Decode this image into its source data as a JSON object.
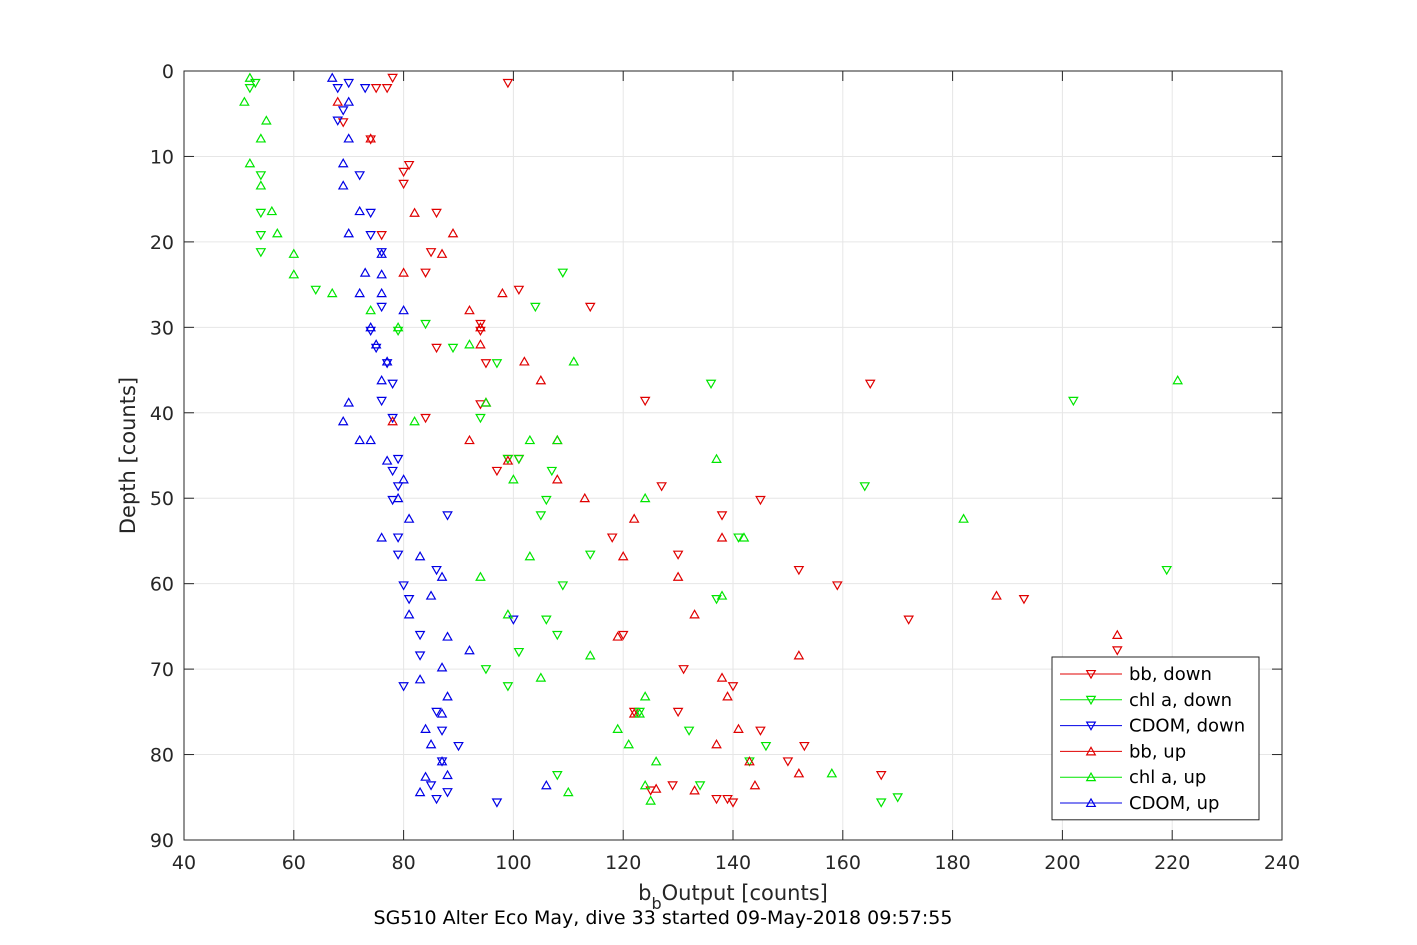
{
  "caption": "SG510 Alter Eco May, dive 33 started 09-May-2018 09:57:55",
  "colors": {
    "red": "#e00000",
    "green": "#00e600",
    "blue": "#0000e6",
    "grid": "#e6e6e6",
    "axis": "#262626"
  },
  "chart_data": {
    "type": "scatter",
    "xlabel": "b",
    "xlabel_sub": "b",
    "xlabel_rest": "Output [counts]",
    "ylabel": "Depth [counts]",
    "xlim": [
      40,
      240
    ],
    "ylim": [
      0,
      90
    ],
    "y_reversed": true,
    "grid": true,
    "legend_position": "bottom-right",
    "xticks": [
      40,
      60,
      80,
      100,
      120,
      140,
      160,
      180,
      200,
      220,
      240
    ],
    "yticks": [
      0,
      10,
      20,
      30,
      40,
      50,
      60,
      70,
      80,
      90
    ],
    "series": [
      {
        "name": "bb, down",
        "color": "#e00000",
        "marker": "triangle-down",
        "points": [
          [
            78,
            0.8
          ],
          [
            99,
            1.4
          ],
          [
            75,
            2
          ],
          [
            77,
            2
          ],
          [
            69,
            6
          ],
          [
            74,
            8
          ],
          [
            80,
            11.8
          ],
          [
            80,
            13.2
          ],
          [
            81,
            11
          ],
          [
            86,
            16.6
          ],
          [
            76,
            19.2
          ],
          [
            85,
            21.2
          ],
          [
            84,
            23.6
          ],
          [
            101,
            25.6
          ],
          [
            114,
            27.6
          ],
          [
            94,
            29.6
          ],
          [
            94,
            30.4
          ],
          [
            86,
            32.4
          ],
          [
            95,
            34.2
          ],
          [
            165,
            36.6
          ],
          [
            124,
            38.6
          ],
          [
            94,
            39
          ],
          [
            84,
            40.6
          ],
          [
            99,
            45.4
          ],
          [
            101,
            45.4
          ],
          [
            97,
            46.8
          ],
          [
            127,
            48.6
          ],
          [
            145,
            50.2
          ],
          [
            138,
            52
          ],
          [
            118,
            54.6
          ],
          [
            130,
            56.6
          ],
          [
            152,
            58.4
          ],
          [
            159,
            60.2
          ],
          [
            193,
            61.8
          ],
          [
            120,
            66
          ],
          [
            172,
            64.2
          ],
          [
            131,
            70
          ],
          [
            140,
            72
          ],
          [
            130,
            75
          ],
          [
            122,
            75
          ],
          [
            145,
            77.2
          ],
          [
            153,
            79
          ],
          [
            150,
            80.8
          ],
          [
            167,
            82.4
          ],
          [
            129,
            83.6
          ],
          [
            125,
            84.2
          ],
          [
            137,
            85.2
          ],
          [
            139,
            85.2
          ],
          [
            140,
            85.6
          ],
          [
            210,
            67.8
          ]
        ]
      },
      {
        "name": "chl a, down",
        "color": "#00e600",
        "marker": "triangle-down",
        "points": [
          [
            53,
            1.4
          ],
          [
            52,
            2
          ],
          [
            54,
            12.2
          ],
          [
            54,
            16.6
          ],
          [
            54,
            19.2
          ],
          [
            54,
            21.2
          ],
          [
            64,
            25.6
          ],
          [
            104,
            27.6
          ],
          [
            79,
            30.4
          ],
          [
            84,
            29.6
          ],
          [
            97,
            34.2
          ],
          [
            136,
            36.6
          ],
          [
            202,
            38.6
          ],
          [
            94,
            40.6
          ],
          [
            109,
            23.6
          ],
          [
            164,
            48.6
          ],
          [
            106,
            50.2
          ],
          [
            105,
            52
          ],
          [
            114,
            56.6
          ],
          [
            219,
            58.4
          ],
          [
            109,
            60.2
          ],
          [
            137,
            61.8
          ],
          [
            106,
            64.2
          ],
          [
            108,
            66
          ],
          [
            101,
            68
          ],
          [
            95,
            70
          ],
          [
            99,
            72
          ],
          [
            123,
            75
          ],
          [
            132,
            77.2
          ],
          [
            146,
            79
          ],
          [
            108,
            82.4
          ],
          [
            134,
            83.6
          ],
          [
            167,
            85.6
          ],
          [
            170,
            85
          ],
          [
            143,
            80.8
          ],
          [
            101,
            45.4
          ],
          [
            99,
            45.4
          ],
          [
            107,
            46.8
          ],
          [
            141,
            54.6
          ],
          [
            89,
            32.4
          ]
        ]
      },
      {
        "name": "CDOM, down",
        "color": "#0000e6",
        "marker": "triangle-down",
        "points": [
          [
            68,
            2
          ],
          [
            73,
            2
          ],
          [
            70,
            1.4
          ],
          [
            69,
            4.6
          ],
          [
            68,
            5.8
          ],
          [
            72,
            12.2
          ],
          [
            74,
            16.6
          ],
          [
            74,
            19.2
          ],
          [
            76,
            21.2
          ],
          [
            76,
            27.6
          ],
          [
            74,
            30.4
          ],
          [
            75,
            32.4
          ],
          [
            77,
            34.2
          ],
          [
            78,
            36.6
          ],
          [
            76,
            38.6
          ],
          [
            78,
            40.6
          ],
          [
            79,
            45.4
          ],
          [
            78,
            46.8
          ],
          [
            79,
            48.6
          ],
          [
            78,
            50.2
          ],
          [
            88,
            52
          ],
          [
            79,
            54.6
          ],
          [
            79,
            56.6
          ],
          [
            86,
            58.4
          ],
          [
            80,
            60.2
          ],
          [
            81,
            61.8
          ],
          [
            100,
            64.2
          ],
          [
            83,
            66
          ],
          [
            83,
            68.4
          ],
          [
            80,
            72
          ],
          [
            86,
            75
          ],
          [
            90,
            79
          ],
          [
            87,
            80.8
          ],
          [
            85,
            83.6
          ],
          [
            88,
            84.4
          ],
          [
            86,
            85.2
          ],
          [
            97,
            85.6
          ],
          [
            87,
            77.2
          ]
        ]
      },
      {
        "name": "bb, up",
        "color": "#e00000",
        "marker": "triangle-up",
        "points": [
          [
            68,
            3.6
          ],
          [
            74,
            7.9
          ],
          [
            82,
            16.6
          ],
          [
            80,
            23.6
          ],
          [
            89,
            19
          ],
          [
            87,
            21.4
          ],
          [
            98,
            26
          ],
          [
            92,
            28
          ],
          [
            94,
            30
          ],
          [
            94,
            32
          ],
          [
            102,
            34
          ],
          [
            105,
            36.2
          ],
          [
            95,
            38.8
          ],
          [
            78,
            41
          ],
          [
            92,
            43.2
          ],
          [
            108,
            43.2
          ],
          [
            99,
            45.6
          ],
          [
            108,
            47.8
          ],
          [
            113,
            50
          ],
          [
            122,
            52.4
          ],
          [
            138,
            54.6
          ],
          [
            120,
            56.8
          ],
          [
            130,
            59.2
          ],
          [
            188,
            61.4
          ],
          [
            133,
            63.6
          ],
          [
            119,
            66.2
          ],
          [
            152,
            68.4
          ],
          [
            138,
            71
          ],
          [
            139,
            73.2
          ],
          [
            122,
            75.2
          ],
          [
            141,
            77
          ],
          [
            137,
            78.8
          ],
          [
            143,
            80.8
          ],
          [
            152,
            82.2
          ],
          [
            144,
            83.6
          ],
          [
            133,
            84.2
          ],
          [
            126,
            84
          ],
          [
            210,
            66
          ]
        ]
      },
      {
        "name": "chl a, up",
        "color": "#00e600",
        "marker": "triangle-up",
        "points": [
          [
            52,
            0.8
          ],
          [
            51,
            3.6
          ],
          [
            55,
            5.8
          ],
          [
            54,
            7.9
          ],
          [
            52,
            10.8
          ],
          [
            54,
            13.4
          ],
          [
            56,
            16.4
          ],
          [
            57,
            19
          ],
          [
            60,
            21.4
          ],
          [
            60,
            23.8
          ],
          [
            67,
            26
          ],
          [
            74,
            28
          ],
          [
            79,
            30
          ],
          [
            92,
            32
          ],
          [
            111,
            34
          ],
          [
            95,
            38.8
          ],
          [
            82,
            41
          ],
          [
            103,
            43.2
          ],
          [
            108,
            43.2
          ],
          [
            100,
            47.8
          ],
          [
            124,
            50
          ],
          [
            137,
            45.4
          ],
          [
            182,
            52.4
          ],
          [
            142,
            54.6
          ],
          [
            103,
            56.8
          ],
          [
            94,
            59.2
          ],
          [
            138,
            61.4
          ],
          [
            99,
            63.6
          ],
          [
            114,
            68.4
          ],
          [
            105,
            71
          ],
          [
            124,
            73.2
          ],
          [
            123,
            75.2
          ],
          [
            119,
            77
          ],
          [
            121,
            78.8
          ],
          [
            126,
            80.8
          ],
          [
            158,
            82.2
          ],
          [
            124,
            83.6
          ],
          [
            110,
            84.4
          ],
          [
            125,
            85.4
          ],
          [
            221,
            36.2
          ]
        ]
      },
      {
        "name": "CDOM, up",
        "color": "#0000e6",
        "marker": "triangle-up",
        "points": [
          [
            67,
            0.8
          ],
          [
            70,
            3.6
          ],
          [
            70,
            7.9
          ],
          [
            69,
            10.8
          ],
          [
            69,
            13.4
          ],
          [
            72,
            16.4
          ],
          [
            70,
            19
          ],
          [
            76,
            21.4
          ],
          [
            73,
            23.6
          ],
          [
            76,
            23.8
          ],
          [
            72,
            26
          ],
          [
            76,
            26
          ],
          [
            80,
            28
          ],
          [
            74,
            30
          ],
          [
            75,
            32
          ],
          [
            77,
            34
          ],
          [
            76,
            36.2
          ],
          [
            70,
            38.8
          ],
          [
            69,
            41
          ],
          [
            72,
            43.2
          ],
          [
            74,
            43.2
          ],
          [
            77,
            45.6
          ],
          [
            80,
            47.8
          ],
          [
            79,
            50
          ],
          [
            81,
            52.4
          ],
          [
            76,
            54.6
          ],
          [
            83,
            56.8
          ],
          [
            87,
            59.2
          ],
          [
            85,
            61.4
          ],
          [
            81,
            63.6
          ],
          [
            88,
            66.2
          ],
          [
            92,
            67.8
          ],
          [
            87,
            69.8
          ],
          [
            83,
            71.2
          ],
          [
            88,
            73.2
          ],
          [
            87,
            75.2
          ],
          [
            84,
            77
          ],
          [
            85,
            78.8
          ],
          [
            87,
            80.8
          ],
          [
            88,
            82.4
          ],
          [
            84,
            82.6
          ],
          [
            83,
            84.4
          ],
          [
            106,
            83.6
          ]
        ]
      }
    ]
  }
}
